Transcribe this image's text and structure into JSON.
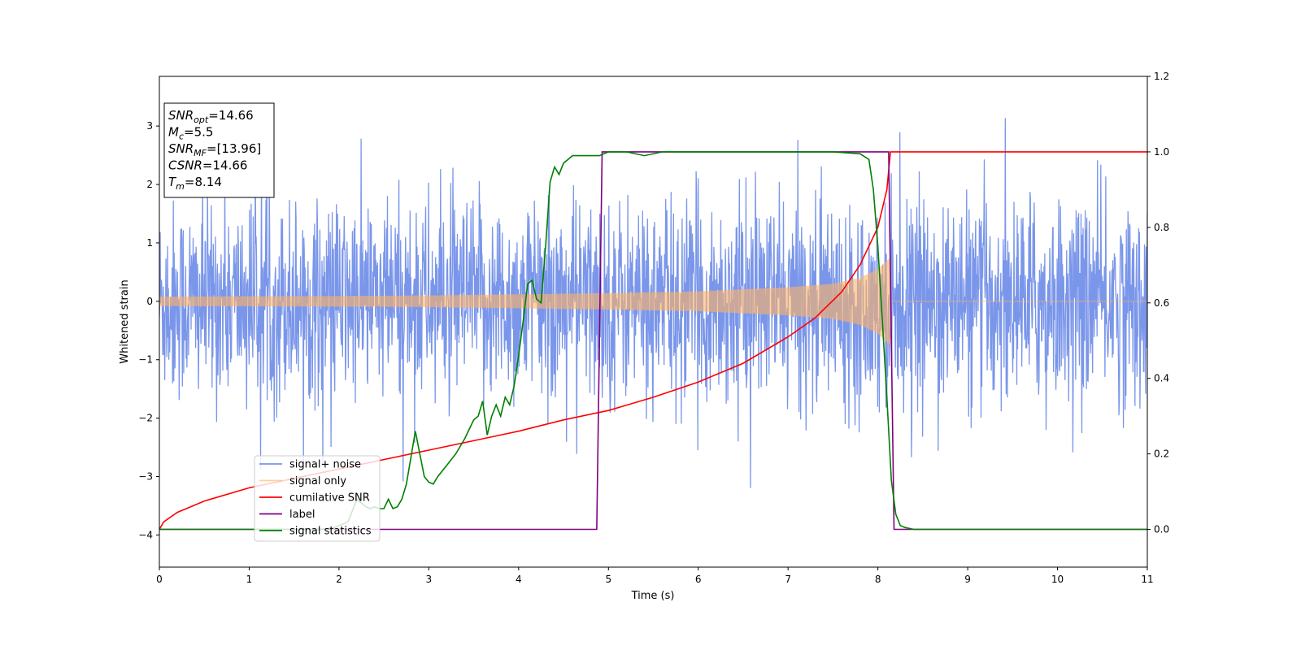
{
  "chart_data": {
    "type": "line",
    "xlabel": "Time (s)",
    "ylabel_left": "Whitened strain",
    "xlim": [
      0,
      11
    ],
    "ylim_left": [
      -4.55,
      3.85
    ],
    "ylim_right": [
      -0.1,
      1.2
    ],
    "x_ticks": [
      0,
      1,
      2,
      3,
      4,
      5,
      6,
      7,
      8,
      9,
      10,
      11
    ],
    "y_ticks_left": [
      -4,
      -3,
      -2,
      -1,
      0,
      1,
      2,
      3
    ],
    "y_ticks_right": [
      0.0,
      0.2,
      0.4,
      0.6,
      0.8,
      1.0,
      1.2
    ],
    "grid": false,
    "legend_position": "lower-left",
    "annotation": {
      "lines": [
        {
          "sym": "SNR",
          "sub": "opt",
          "rest": "=14.66"
        },
        {
          "sym": "M",
          "sub": "c",
          "rest": "=5.5"
        },
        {
          "sym": "SNR",
          "sub": "MF",
          "rest": "=[13.96]"
        },
        {
          "sym": "CSNR",
          "sub": "",
          "rest": "=14.66"
        },
        {
          "sym": "T",
          "sub": "m",
          "rest": "=8.14"
        }
      ]
    },
    "merger_time": 8.14,
    "series": [
      {
        "name": "signal+ noise",
        "color": "#4169e1",
        "axis": "left",
        "kind": "noise",
        "description_values": {
          "typical_range": [
            -2.2,
            2.3
          ],
          "extremes": [
            -4.15,
            3.5
          ]
        }
      },
      {
        "name": "signal only",
        "color": "#ffb366",
        "axis": "left",
        "kind": "chirp",
        "envelope_x": [
          0,
          1,
          2,
          3,
          4,
          5,
          6,
          7,
          7.5,
          7.8,
          8.0,
          8.14,
          8.15,
          11
        ],
        "envelope_y": [
          0.08,
          0.085,
          0.09,
          0.1,
          0.12,
          0.14,
          0.17,
          0.24,
          0.3,
          0.4,
          0.55,
          0.75,
          0,
          0
        ]
      },
      {
        "name": "cumilative SNR",
        "color": "#ff0000",
        "axis": "right",
        "x": [
          0,
          0.05,
          0.2,
          0.5,
          1,
          1.5,
          2,
          2.5,
          3,
          3.5,
          4,
          4.5,
          5,
          5.5,
          6,
          6.5,
          7,
          7.3,
          7.6,
          7.8,
          8.0,
          8.1,
          8.14,
          8.15,
          11
        ],
        "y": [
          0,
          0.02,
          0.045,
          0.075,
          0.11,
          0.135,
          0.16,
          0.185,
          0.21,
          0.235,
          0.26,
          0.29,
          0.315,
          0.35,
          0.39,
          0.44,
          0.51,
          0.56,
          0.63,
          0.7,
          0.8,
          0.9,
          1.0,
          1.0,
          1.0
        ]
      },
      {
        "name": "label",
        "color": "#800080",
        "axis": "right",
        "x": [
          0,
          4.87,
          4.93,
          8.12,
          8.18,
          11
        ],
        "y": [
          0,
          0,
          1,
          1,
          0,
          0
        ]
      },
      {
        "name": "signal statistics",
        "color": "#008000",
        "axis": "right",
        "x": [
          0,
          1.8,
          1.95,
          2.1,
          2.2,
          2.3,
          2.35,
          2.4,
          2.45,
          2.5,
          2.55,
          2.6,
          2.65,
          2.7,
          2.75,
          2.8,
          2.85,
          2.9,
          2.95,
          3.0,
          3.05,
          3.1,
          3.2,
          3.3,
          3.4,
          3.5,
          3.55,
          3.6,
          3.65,
          3.7,
          3.75,
          3.8,
          3.85,
          3.9,
          3.95,
          4.0,
          4.05,
          4.1,
          4.15,
          4.2,
          4.25,
          4.3,
          4.35,
          4.4,
          4.45,
          4.5,
          4.55,
          4.6,
          4.7,
          4.8,
          4.9,
          5.0,
          5.2,
          5.4,
          5.6,
          5.8,
          6.0,
          6.5,
          7.0,
          7.5,
          7.8,
          7.9,
          7.95,
          8.0,
          8.05,
          8.1,
          8.15,
          8.2,
          8.25,
          8.3,
          8.4,
          8.6,
          11
        ],
        "y": [
          0,
          0,
          0.005,
          0.02,
          0.08,
          0.06,
          0.055,
          0.06,
          0.055,
          0.055,
          0.08,
          0.055,
          0.06,
          0.08,
          0.12,
          0.19,
          0.26,
          0.2,
          0.14,
          0.125,
          0.12,
          0.14,
          0.17,
          0.2,
          0.24,
          0.29,
          0.3,
          0.34,
          0.25,
          0.3,
          0.33,
          0.3,
          0.35,
          0.33,
          0.38,
          0.46,
          0.55,
          0.65,
          0.66,
          0.61,
          0.6,
          0.75,
          0.92,
          0.96,
          0.94,
          0.97,
          0.98,
          0.99,
          0.99,
          0.99,
          0.99,
          1.0,
          1.0,
          0.99,
          1.0,
          1.0,
          1.0,
          1.0,
          1.0,
          1.0,
          0.995,
          0.98,
          0.9,
          0.75,
          0.55,
          0.35,
          0.13,
          0.04,
          0.01,
          0.005,
          0.0,
          0.0,
          0.0
        ]
      }
    ]
  }
}
